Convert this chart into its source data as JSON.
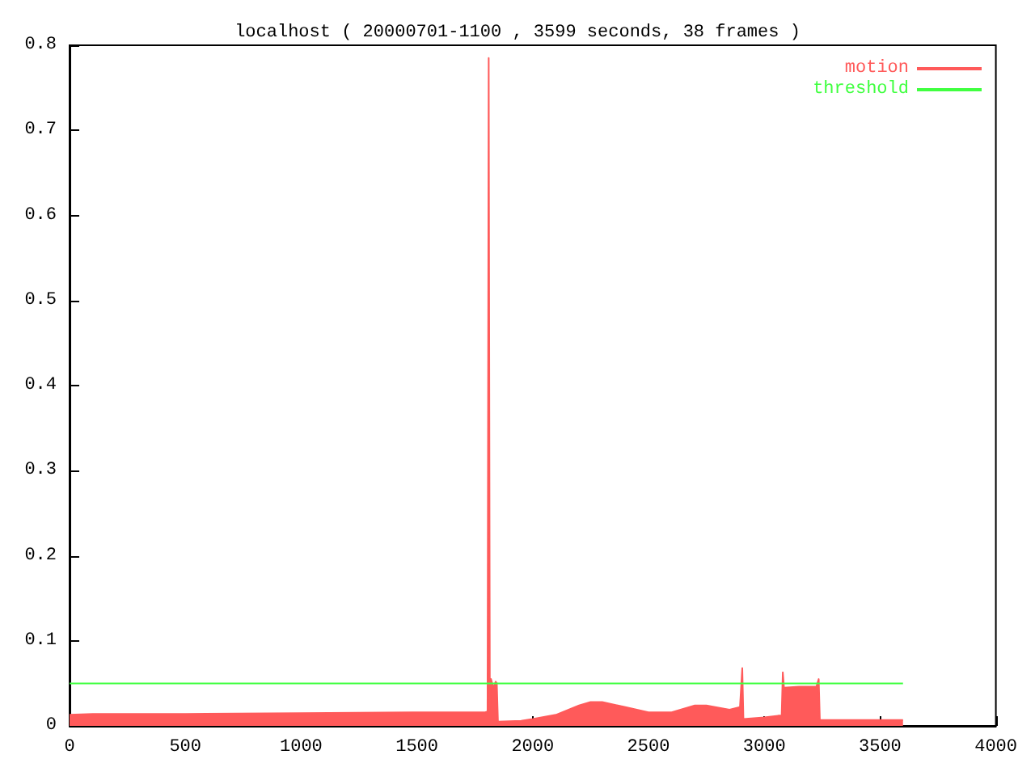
{
  "chart_data": {
    "type": "area",
    "title": "localhost ( 20000701-1100 , 3599 seconds, 38 frames )",
    "xlim": [
      0,
      4000
    ],
    "xticks": [
      0,
      500,
      1000,
      1500,
      2000,
      2500,
      3000,
      3500,
      4000
    ],
    "ylim": [
      0,
      0.8
    ],
    "yticks": [
      0,
      0.1,
      0.2,
      0.3,
      0.4,
      0.5,
      0.6,
      0.7,
      0.8
    ],
    "grid": false,
    "legend": "top right",
    "series": [
      {
        "name": "motion",
        "color": "#ff5a5a",
        "x": [
          0,
          100,
          500,
          1000,
          1500,
          1795,
          1805,
          1810,
          1815,
          1820,
          1830,
          1840,
          1845,
          1850,
          1950,
          2000,
          2100,
          2200,
          2250,
          2300,
          2400,
          2500,
          2600,
          2700,
          2750,
          2850,
          2895,
          2905,
          2910,
          3000,
          3060,
          3075,
          3080,
          3085,
          3150,
          3225,
          3235,
          3240,
          3599
        ],
        "values": [
          0.013,
          0.014,
          0.014,
          0.015,
          0.016,
          0.016,
          0.017,
          0.785,
          0.02,
          0.055,
          0.045,
          0.052,
          0.05,
          0.005,
          0.006,
          0.008,
          0.013,
          0.024,
          0.028,
          0.028,
          0.022,
          0.016,
          0.016,
          0.024,
          0.024,
          0.019,
          0.022,
          0.068,
          0.008,
          0.01,
          0.012,
          0.012,
          0.063,
          0.045,
          0.046,
          0.046,
          0.055,
          0.007,
          0.007
        ]
      },
      {
        "name": "threshold",
        "type": "line",
        "color": "#40ff40",
        "x": [
          0,
          3599
        ],
        "values": [
          0.05,
          0.05
        ]
      }
    ]
  }
}
